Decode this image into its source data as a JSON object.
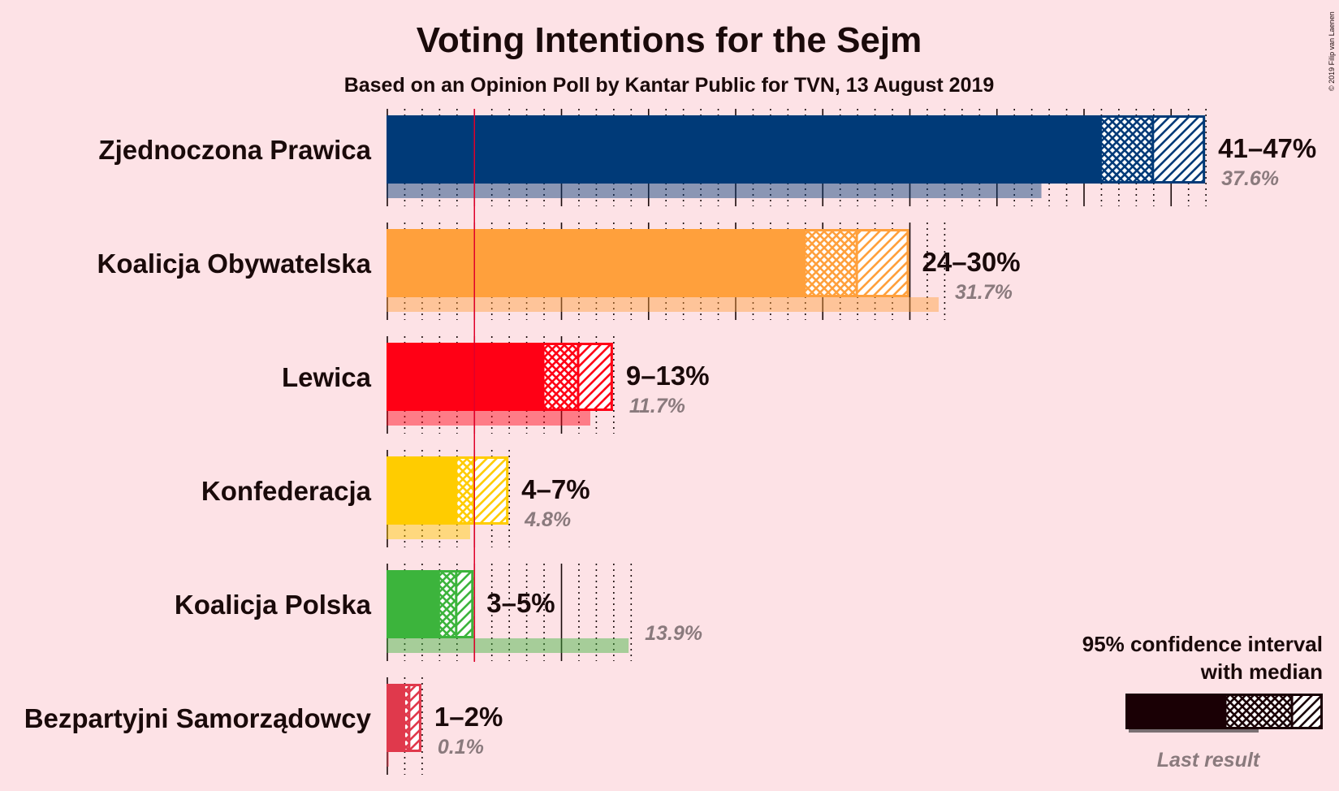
{
  "chart_data": {
    "type": "bar",
    "title": "Voting Intentions for the Sejm",
    "subtitle": "Based on an Opinion Poll by Kantar Public for TVN, 13 August 2019",
    "copyright": "© 2019 Filip van Laenen",
    "threshold": 5,
    "parties": [
      {
        "name": "Zjednoczona Prawica",
        "color": "#003a78",
        "ci_low": 41,
        "median": 44,
        "ci_high": 47,
        "range_label": "41–47%",
        "last_result": 37.6,
        "last_label": "37.6%"
      },
      {
        "name": "Koalicja Obywatelska",
        "color": "#ffa03c",
        "ci_low": 24,
        "median": 27,
        "ci_high": 30,
        "range_label": "24–30%",
        "last_result": 31.7,
        "last_label": "31.7%"
      },
      {
        "name": "Lewica",
        "color": "#ff0015",
        "ci_low": 9,
        "median": 11,
        "ci_high": 13,
        "range_label": "9–13%",
        "last_result": 11.7,
        "last_label": "11.7%"
      },
      {
        "name": "Konfederacja",
        "color": "#ffcc00",
        "ci_low": 4,
        "median": 5,
        "ci_high": 7,
        "range_label": "4–7%",
        "last_result": 4.8,
        "last_label": "4.8%"
      },
      {
        "name": "Koalicja Polska",
        "color": "#3cb43c",
        "ci_low": 3,
        "median": 4,
        "ci_high": 5,
        "range_label": "3–5%",
        "last_result": 13.9,
        "last_label": "13.9%"
      },
      {
        "name": "Bezpartyjni Samorządowcy",
        "color": "#e0394c",
        "ci_low": 1,
        "median": 1.3,
        "ci_high": 2,
        "range_label": "1–2%",
        "last_result": 0.1,
        "last_label": "0.1%"
      }
    ],
    "legend": {
      "line1": "95% confidence interval",
      "line2": "with median",
      "last_result": "Last result",
      "color": "#1a0005",
      "last_color": "#7a7073"
    }
  }
}
